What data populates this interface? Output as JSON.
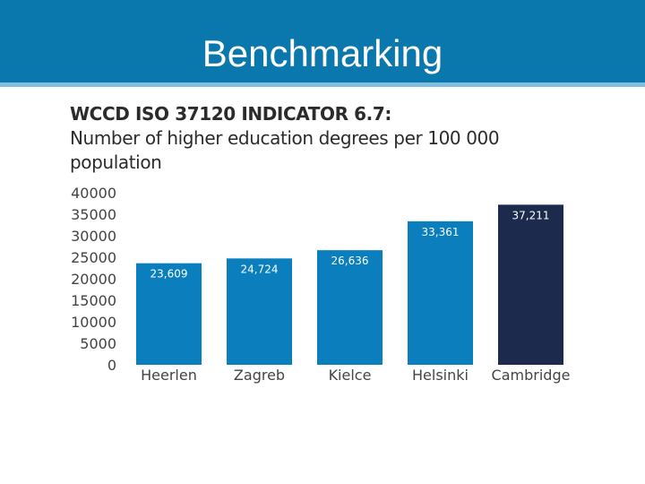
{
  "slide": {
    "title": "Benchmarking"
  },
  "colors": {
    "header": "#0b78ad",
    "bar": "#0b7fbd",
    "highlight_bar": "#1c2a4d"
  },
  "chart_data": {
    "type": "bar",
    "title": "WCCD ISO 37120 INDICATOR 6.7:",
    "subtitle": "Number of higher education degrees per 100 000 population",
    "categories": [
      "Heerlen",
      "Zagreb",
      "Kielce",
      "Helsinki",
      "Cambridge"
    ],
    "values": [
      23609,
      24724,
      26636,
      33361,
      37211
    ],
    "data_labels": [
      "23,609",
      "24,724",
      "26,636",
      "33,361",
      "37,211"
    ],
    "highlight": "Cambridge",
    "ylim": [
      0,
      40000
    ],
    "yticks": [
      "40000",
      "35000",
      "30000",
      "25000",
      "20000",
      "15000",
      "10000",
      "5000",
      "0"
    ],
    "xlabel": "",
    "ylabel": "",
    "grid": false,
    "legend": "none"
  }
}
